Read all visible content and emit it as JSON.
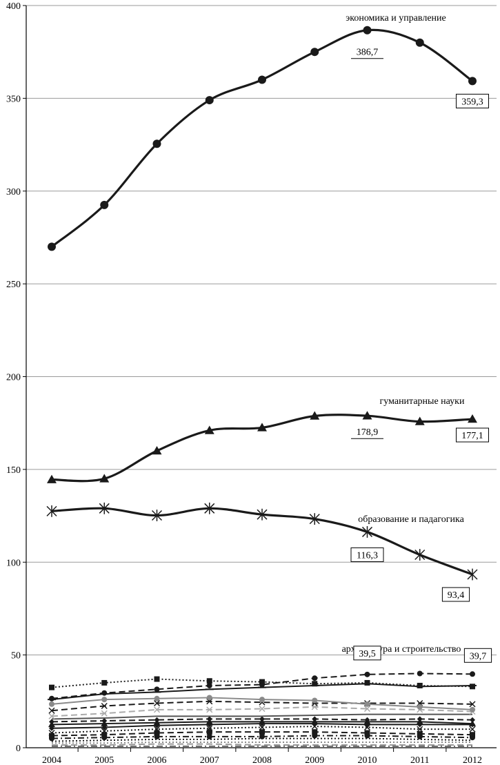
{
  "chart_data": {
    "type": "line",
    "title": "",
    "xlabel": "",
    "ylabel": "",
    "x": [
      2004,
      2005,
      2006,
      2007,
      2008,
      2009,
      2010,
      2011,
      2012
    ],
    "ylim": [
      0,
      400
    ],
    "yticks": [
      0,
      50,
      100,
      150,
      200,
      250,
      300,
      350,
      400
    ],
    "grid": "horizontal",
    "series": [
      {
        "name": "экономика  и  управление",
        "values": [
          270,
          292.5,
          325.5,
          349,
          360,
          375,
          386.7,
          380,
          359.3
        ],
        "marker": "circle",
        "style": "solid",
        "color": "#1a1a1a",
        "width": 3.2
      },
      {
        "name": "гуманитарные  науки",
        "values": [
          144.5,
          145,
          160,
          171,
          172.5,
          178.8,
          178.9,
          175.8,
          177.1
        ],
        "marker": "triangle",
        "style": "solid",
        "color": "#1a1a1a",
        "width": 3.2
      },
      {
        "name": "образование  и  падагогика",
        "values": [
          127.5,
          129,
          125.2,
          129,
          125.7,
          123.3,
          116.3,
          104,
          93.4
        ],
        "marker": "star",
        "style": "solid",
        "color": "#1a1a1a",
        "width": 3.2
      },
      {
        "name": "архитектура  и  строительство",
        "values": [
          26.5,
          29.5,
          31.5,
          33.5,
          34,
          37.5,
          39.5,
          40,
          39.7
        ],
        "marker": "circle",
        "style": "dashed",
        "color": "#1a1a1a",
        "width": 2
      },
      {
        "values": [
          32.5,
          35,
          37,
          36,
          35.5,
          34.5,
          35,
          33.5,
          33
        ],
        "marker": "square",
        "style": "dotted",
        "color": "#1a1a1a",
        "width": 2
      },
      {
        "values": [
          26,
          29,
          30,
          31.5,
          32.5,
          33.5,
          34.5,
          33,
          33.5
        ],
        "marker": "dash",
        "style": "solid",
        "color": "#1a1a1a",
        "width": 2
      },
      {
        "values": [
          23.5,
          26,
          26.5,
          27,
          26,
          25.5,
          23.5,
          22,
          20.5
        ],
        "marker": "circle",
        "style": "solid",
        "color": "#8a8a8a",
        "width": 2
      },
      {
        "values": [
          20,
          22.5,
          24,
          25,
          24.5,
          24,
          24,
          24,
          23.5
        ],
        "marker": "cross",
        "style": "dashed",
        "color": "#1a1a1a",
        "width": 2
      },
      {
        "values": [
          17,
          18.5,
          20.5,
          20.5,
          21,
          22,
          21,
          20.5,
          19.5
        ],
        "marker": "cross",
        "style": "dashed",
        "color": "#aaaaaa",
        "width": 2
      },
      {
        "values": [
          15.5,
          16,
          17,
          17,
          17,
          17.5,
          18,
          18,
          18
        ],
        "marker": "none",
        "style": "solid",
        "color": "#555555",
        "width": 2
      },
      {
        "values": [
          14,
          14.5,
          15,
          15.5,
          15.5,
          15.5,
          15,
          15.5,
          15
        ],
        "marker": "diamond",
        "style": "dashed",
        "color": "#1a1a1a",
        "width": 2
      },
      {
        "values": [
          12.5,
          13,
          13.5,
          14,
          14,
          14,
          14,
          14,
          13
        ],
        "marker": "triangle",
        "style": "solid",
        "color": "#1a1a1a",
        "width": 2
      },
      {
        "values": [
          10.5,
          11,
          12,
          12.5,
          13,
          13,
          12.5,
          12.5,
          12.5
        ],
        "marker": "diamond",
        "style": "solid",
        "color": "#1a1a1a",
        "width": 2
      },
      {
        "values": [
          8,
          9,
          10,
          10.5,
          11,
          11.5,
          11,
          10,
          10
        ],
        "marker": "cross",
        "style": "dotted",
        "color": "#1a1a1a",
        "width": 2
      },
      {
        "values": [
          6.5,
          7,
          8,
          8.5,
          8.5,
          8.5,
          8,
          7.5,
          7
        ],
        "marker": "square",
        "style": "dashed",
        "color": "#1a1a1a",
        "width": 2
      },
      {
        "values": [
          5,
          5.5,
          6,
          6,
          6,
          6.5,
          6.5,
          6,
          5.5
        ],
        "marker": "circle",
        "style": "dash-dot",
        "color": "#1a1a1a",
        "width": 2
      },
      {
        "values": [
          3.5,
          4,
          4.5,
          4.5,
          5,
          5,
          5,
          4.5,
          4
        ],
        "marker": "none",
        "style": "dotted",
        "color": "#1a1a1a",
        "width": 2
      },
      {
        "values": [
          2.5,
          2.5,
          3,
          3,
          3,
          3,
          3,
          3,
          3
        ],
        "marker": "none",
        "style": "dotted",
        "color": "#888888",
        "width": 2
      },
      {
        "values": [
          1.5,
          1.5,
          2,
          2,
          1.5,
          1.5,
          1.5,
          1.5,
          1.5
        ],
        "marker": "none",
        "style": "dashed",
        "color": "#999999",
        "width": 2
      },
      {
        "values": [
          0.8,
          0.8,
          0.8,
          0.8,
          0.8,
          0.8,
          0.8,
          0.8,
          0.8
        ],
        "marker": "none",
        "style": "dash-dot",
        "color": "#666666",
        "width": 2
      }
    ],
    "annotations": [
      {
        "series": 0,
        "index": 6,
        "text": "386,7",
        "box": false
      },
      {
        "series": 0,
        "index": 8,
        "text": "359,3",
        "box": true
      },
      {
        "series": 1,
        "index": 6,
        "text": "178,9",
        "box": false
      },
      {
        "series": 1,
        "index": 8,
        "text": "177,1",
        "box": true
      },
      {
        "series": 2,
        "index": 6,
        "text": "116,3",
        "box": true
      },
      {
        "series": 2,
        "index": 8,
        "text": "93,4",
        "box": true
      },
      {
        "series": 3,
        "index": 6,
        "text": "39,5",
        "box": true
      },
      {
        "series": 3,
        "index": 8,
        "text": "39,7",
        "box": true
      }
    ]
  }
}
